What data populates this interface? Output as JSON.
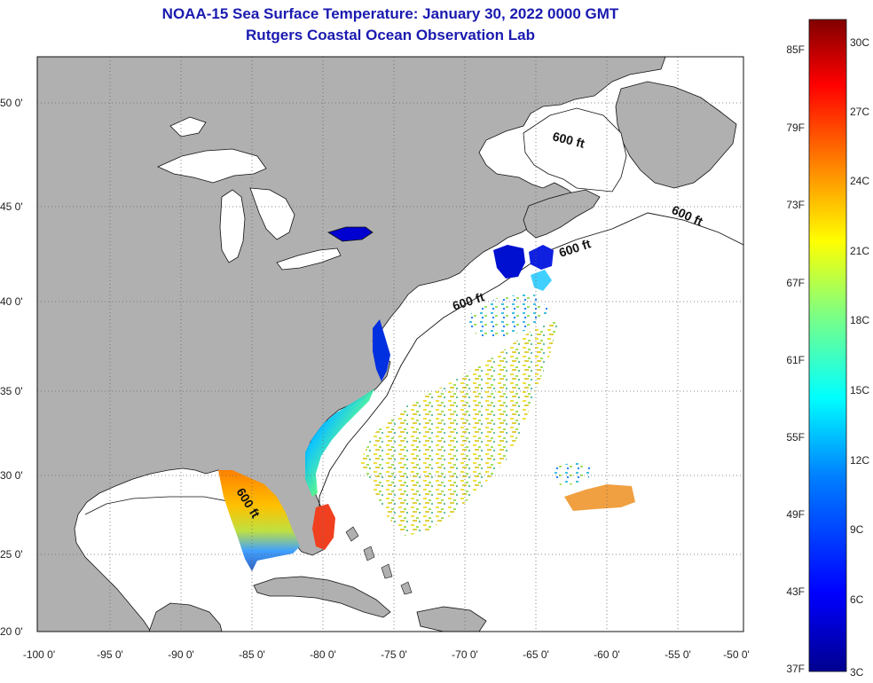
{
  "header": {
    "title": "NOAA-15 Sea Surface Temperature:  January 30, 2022 0000 GMT",
    "subtitle": "Rutgers Coastal Ocean Observation Lab"
  },
  "axes": {
    "lat_labels": [
      "50 0'",
      "45 0'",
      "40 0'",
      "35 0'",
      "30 0'",
      "25 0'",
      "20 0'"
    ],
    "lon_labels": [
      "-100 0'",
      "-95 0'",
      "-90 0'",
      "-85 0'",
      "-80 0'",
      "-75 0'",
      "-70 0'",
      "-65 0'",
      "-60 0'",
      "-55 0'",
      "-50 0'"
    ]
  },
  "isobath": {
    "label": "600 ft"
  },
  "colorbar": {
    "fahrenheit": [
      "85F",
      "79F",
      "73F",
      "67F",
      "61F",
      "55F",
      "49F",
      "43F",
      "37F"
    ],
    "celsius": [
      "30C",
      "27C",
      "24C",
      "21C",
      "18C",
      "15C",
      "12C",
      "9C",
      "6C",
      "3C"
    ],
    "colors": [
      "#00008f",
      "#0000ff",
      "#0080ff",
      "#00ffff",
      "#80ff80",
      "#ffff00",
      "#ff8000",
      "#ff0000",
      "#800000"
    ]
  }
}
